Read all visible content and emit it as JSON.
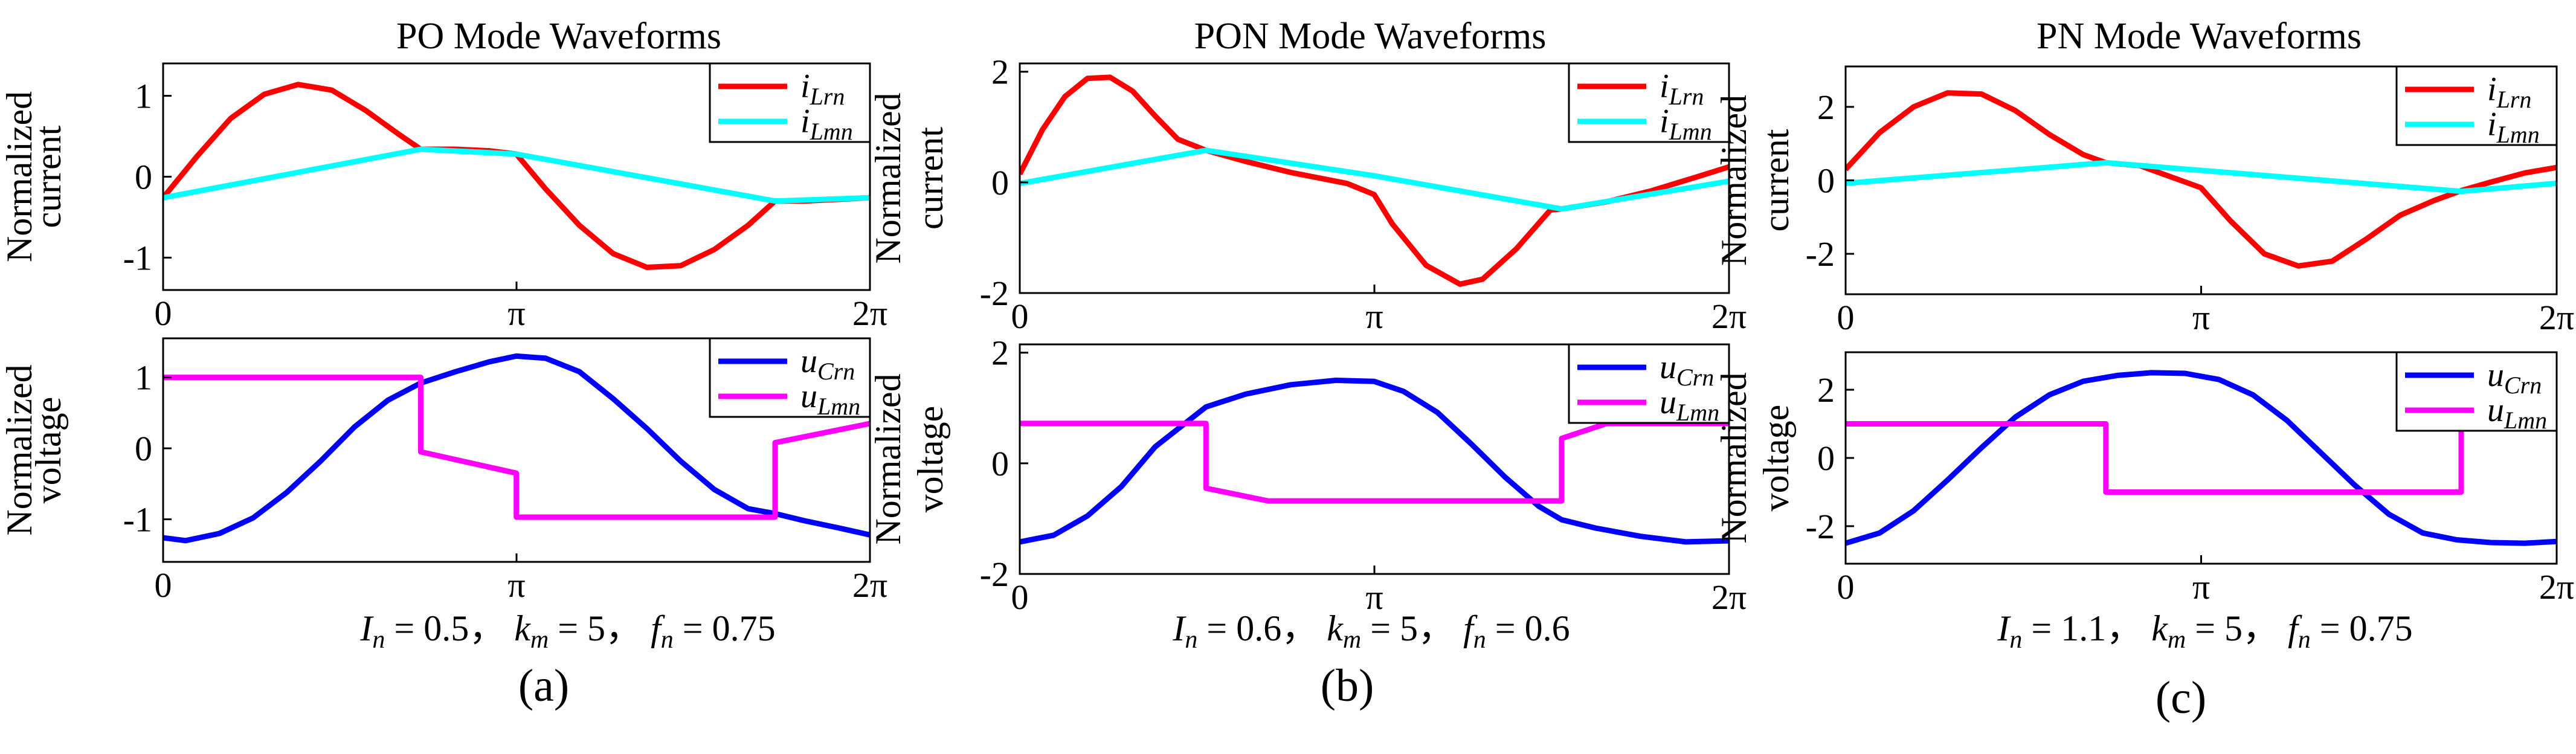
{
  "chart_data": [
    {
      "panel_label": "(a)",
      "title": "PO Mode Waveforms",
      "parameters": "I_n = 0.5,  k_m = 5,  f_n = 0.75",
      "params": [
        {
          "sym": "I",
          "sub": "n",
          "eq": " = 0.5，  "
        },
        {
          "sym": "k",
          "sub": "m",
          "eq": " = 5，  "
        },
        {
          "sym": "f",
          "sub": "n",
          "eq": " = 0.75"
        }
      ],
      "xlabel": "",
      "xticks": [
        {
          "label": "0",
          "value": 0
        },
        {
          "label": "π",
          "value": 3.1416
        },
        {
          "label": "2π",
          "value": 6.2832
        }
      ],
      "xlim": [
        0,
        6.2832
      ],
      "current": {
        "type": "line",
        "ylabel": "Normalized current",
        "ylabel_lines": [
          "Normalized",
          "current"
        ],
        "ylim": [
          -1.4,
          1.4
        ],
        "yticks": [
          {
            "label": "1",
            "value": 1
          },
          {
            "label": "0",
            "value": 0
          },
          {
            "label": "-1",
            "value": -1
          }
        ],
        "legend": "top-right",
        "series": [
          {
            "name": "i_Lrn",
            "sym": "i",
            "sub": "Lrn",
            "color": "#ff0000",
            "x": [
              0,
              0.3,
              0.6,
              0.9,
              1.2,
              1.5,
              1.8,
              2.1,
              2.29,
              2.6,
              2.9,
              3.14,
              3.4,
              3.7,
              4.0,
              4.3,
              4.6,
              4.9,
              5.2,
              5.44,
              5.7,
              6.0,
              6.2832
            ],
            "y": [
              -0.26,
              0.25,
              0.72,
              1.02,
              1.14,
              1.07,
              0.82,
              0.52,
              0.34,
              0.34,
              0.32,
              0.28,
              -0.15,
              -0.6,
              -0.95,
              -1.12,
              -1.1,
              -0.9,
              -0.6,
              -0.3,
              -0.3,
              -0.28,
              -0.26
            ]
          },
          {
            "name": "i_Lmn",
            "sym": "i",
            "sub": "Lmn",
            "color": "#00ffff",
            "x": [
              0,
              2.29,
              3.14,
              5.44,
              6.2832
            ],
            "y": [
              -0.26,
              0.34,
              0.28,
              -0.3,
              -0.26
            ]
          }
        ]
      },
      "voltage": {
        "type": "line",
        "ylabel": "Normalized voltage",
        "ylabel_lines": [
          "Normalized",
          "voltage"
        ],
        "ylim": [
          -1.6,
          1.55
        ],
        "yticks": [
          {
            "label": "1",
            "value": 1
          },
          {
            "label": "0",
            "value": 0
          },
          {
            "label": "-1",
            "value": -1
          }
        ],
        "legend": "top-right",
        "series": [
          {
            "name": "u_Crn",
            "sym": "u",
            "sub": "Crn",
            "color": "#0000ff",
            "x": [
              0,
              0.2,
              0.5,
              0.8,
              1.1,
              1.4,
              1.7,
              2.0,
              2.29,
              2.6,
              2.9,
              3.14,
              3.4,
              3.7,
              4.0,
              4.3,
              4.6,
              4.9,
              5.2,
              5.44,
              5.7,
              6.0,
              6.2832
            ],
            "y": [
              -1.26,
              -1.3,
              -1.2,
              -0.98,
              -0.62,
              -0.18,
              0.3,
              0.68,
              0.92,
              1.08,
              1.22,
              1.3,
              1.27,
              1.08,
              0.7,
              0.28,
              -0.18,
              -0.58,
              -0.85,
              -0.92,
              -1.02,
              -1.12,
              -1.22
            ]
          },
          {
            "name": "u_Lmn",
            "sym": "u",
            "sub": "Lmn",
            "color": "#ff00ff",
            "x": [
              0,
              2.29,
              2.29,
              3.14,
              3.14,
              5.44,
              5.44,
              6.2832
            ],
            "y": [
              1,
              1,
              -0.05,
              -0.35,
              -0.97,
              -0.97,
              0.08,
              0.35
            ]
          }
        ]
      }
    },
    {
      "panel_label": "(b)",
      "title": "PON Mode Waveforms",
      "parameters": "I_n = 0.6,  k_m = 5,  f_n = 0.6",
      "params": [
        {
          "sym": "I",
          "sub": "n",
          "eq": " = 0.6，  "
        },
        {
          "sym": "k",
          "sub": "m",
          "eq": " = 5，  "
        },
        {
          "sym": "f",
          "sub": "n",
          "eq": " = 0.6"
        }
      ],
      "xlabel": "",
      "xticks": [
        {
          "label": "0",
          "value": 0
        },
        {
          "label": "π",
          "value": 3.1416
        },
        {
          "label": "2π",
          "value": 6.2832
        }
      ],
      "xlim": [
        0,
        6.2832
      ],
      "current": {
        "type": "line",
        "ylabel": "Normalized current",
        "ylabel_lines": [
          "Normalized",
          "current"
        ],
        "ylim": [
          -2,
          2.15
        ],
        "yticks": [
          {
            "label": "2",
            "value": 2
          },
          {
            "label": "0",
            "value": 0
          },
          {
            "label": "-2",
            "value": -2
          }
        ],
        "legend": "top-right",
        "series": [
          {
            "name": "i_Lrn",
            "sym": "i",
            "sub": "Lrn",
            "color": "#ff0000",
            "x": [
              0,
              0.2,
              0.4,
              0.6,
              0.8,
              1.0,
              1.2,
              1.4,
              1.65,
              2.0,
              2.4,
              2.9,
              3.14,
              3.3,
              3.6,
              3.9,
              4.1,
              4.4,
              4.7,
              4.8,
              5.2,
              5.6,
              6.0,
              6.2832
            ],
            "y": [
              0.15,
              0.95,
              1.55,
              1.88,
              1.9,
              1.65,
              1.2,
              0.78,
              0.58,
              0.38,
              0.18,
              -0.02,
              -0.22,
              -0.75,
              -1.5,
              -1.84,
              -1.75,
              -1.2,
              -0.5,
              -0.48,
              -0.35,
              -0.15,
              0.1,
              0.28
            ]
          },
          {
            "name": "i_Lmn",
            "sym": "i",
            "sub": "Lmn",
            "color": "#00ffff",
            "x": [
              0,
              1.65,
              3.14,
              4.8,
              6.2832
            ],
            "y": [
              -0.02,
              0.58,
              0.12,
              -0.48,
              0.02
            ]
          }
        ]
      },
      "voltage": {
        "type": "line",
        "ylabel": "Normalized voltage",
        "ylabel_lines": [
          "Normalized",
          "voltage"
        ],
        "ylim": [
          -2,
          2.15
        ],
        "yticks": [
          {
            "label": "2",
            "value": 2
          },
          {
            "label": "0",
            "value": 0
          },
          {
            "label": "-2",
            "value": -2
          }
        ],
        "legend": "top-right",
        "series": [
          {
            "name": "u_Crn",
            "sym": "u",
            "sub": "Crn",
            "color": "#0000ff",
            "x": [
              0,
              0.3,
              0.6,
              0.9,
              1.2,
              1.65,
              2.0,
              2.4,
              2.8,
              3.14,
              3.4,
              3.7,
              4.0,
              4.3,
              4.6,
              4.8,
              5.1,
              5.5,
              5.9,
              6.2832
            ],
            "y": [
              -1.42,
              -1.3,
              -0.95,
              -0.42,
              0.3,
              1.02,
              1.25,
              1.42,
              1.5,
              1.48,
              1.3,
              0.92,
              0.35,
              -0.25,
              -0.78,
              -1.02,
              -1.17,
              -1.32,
              -1.42,
              -1.4
            ]
          },
          {
            "name": "u_Lmn",
            "sym": "u",
            "sub": "Lmn",
            "color": "#ff00ff",
            "x": [
              0,
              1.65,
              1.65,
              2.2,
              4.8,
              4.8,
              5.2,
              6.2832
            ],
            "y": [
              0.72,
              0.72,
              -0.45,
              -0.68,
              -0.68,
              0.45,
              0.72,
              0.72
            ]
          }
        ]
      }
    },
    {
      "panel_label": "(c)",
      "title": "PN Mode Waveforms",
      "parameters": "I_n = 1.1,  k_m = 5,  f_n = 0.75",
      "params": [
        {
          "sym": "I",
          "sub": "n",
          "eq": " = 1.1，  "
        },
        {
          "sym": "k",
          "sub": "m",
          "eq": " =  5，  "
        },
        {
          "sym": "f",
          "sub": "n",
          "eq": " = 0.75"
        }
      ],
      "xlabel": "",
      "xticks": [
        {
          "label": "0",
          "value": 0
        },
        {
          "label": "π",
          "value": 3.1416
        },
        {
          "label": "2π",
          "value": 6.2832
        }
      ],
      "xlim": [
        0,
        6.2832
      ],
      "current": {
        "type": "line",
        "ylabel": "Normalized current",
        "ylabel_lines": [
          "Normalized",
          "current"
        ],
        "ylim": [
          -3.1,
          3.1
        ],
        "yticks": [
          {
            "label": "2",
            "value": 2
          },
          {
            "label": "0",
            "value": 0
          },
          {
            "label": "-2",
            "value": -2
          }
        ],
        "legend": "top-right",
        "series": [
          {
            "name": "i_Lrn",
            "sym": "i",
            "sub": "Lrn",
            "color": "#ff0000",
            "x": [
              0,
              0.3,
              0.6,
              0.9,
              1.2,
              1.5,
              1.8,
              2.1,
              2.3,
              2.6,
              3.14,
              3.4,
              3.7,
              4.0,
              4.3,
              4.6,
              4.9,
              5.2,
              5.44,
              5.7,
              6.0,
              6.2832
            ],
            "y": [
              0.3,
              1.3,
              2.0,
              2.38,
              2.35,
              1.9,
              1.25,
              0.7,
              0.48,
              0.4,
              -0.2,
              -1.1,
              -2.0,
              -2.33,
              -2.2,
              -1.6,
              -0.95,
              -0.55,
              -0.28,
              -0.05,
              0.2,
              0.35
            ]
          },
          {
            "name": "i_Lmn",
            "sym": "i",
            "sub": "Lmn",
            "color": "#00ffff",
            "x": [
              0,
              2.3,
              5.44,
              6.2832
            ],
            "y": [
              -0.08,
              0.48,
              -0.3,
              -0.08
            ]
          }
        ]
      },
      "voltage": {
        "type": "line",
        "ylabel": "Normalized voltage",
        "ylabel_lines": [
          "Normalized",
          "voltage"
        ],
        "ylim": [
          -3.1,
          3.1
        ],
        "yticks": [
          {
            "label": "2",
            "value": 2
          },
          {
            "label": "0",
            "value": 0
          },
          {
            "label": "-2",
            "value": -2
          }
        ],
        "legend": "top-right",
        "series": [
          {
            "name": "u_Crn",
            "sym": "u",
            "sub": "Crn",
            "color": "#0000ff",
            "x": [
              0,
              0.3,
              0.6,
              0.9,
              1.2,
              1.5,
              1.8,
              2.1,
              2.4,
              2.7,
              3.0,
              3.3,
              3.6,
              3.9,
              4.2,
              4.5,
              4.8,
              5.1,
              5.4,
              5.7,
              6.0,
              6.2832
            ],
            "y": [
              -2.5,
              -2.2,
              -1.55,
              -0.65,
              0.3,
              1.2,
              1.85,
              2.25,
              2.42,
              2.5,
              2.48,
              2.3,
              1.85,
              1.1,
              0.15,
              -0.8,
              -1.65,
              -2.2,
              -2.4,
              -2.48,
              -2.5,
              -2.45
            ]
          },
          {
            "name": "u_Lmn",
            "sym": "u",
            "sub": "Lmn",
            "color": "#ff00ff",
            "x": [
              0,
              2.3,
              2.3,
              5.44,
              5.44,
              6.2832
            ],
            "y": [
              1,
              1,
              -1,
              -1,
              1,
              1
            ]
          }
        ]
      }
    }
  ]
}
